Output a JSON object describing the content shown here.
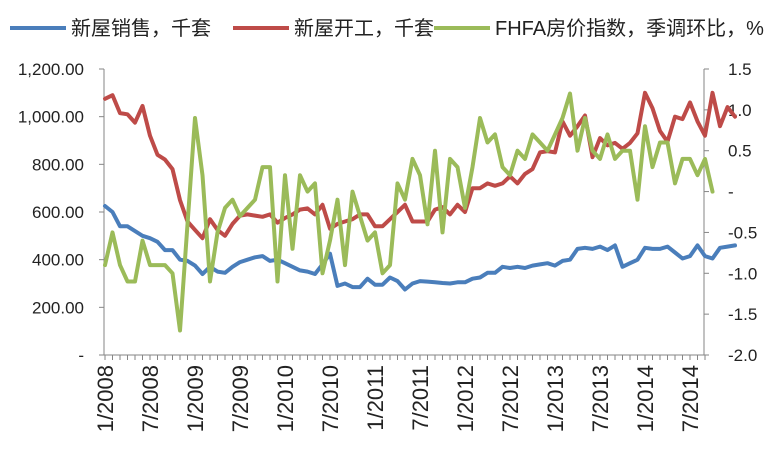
{
  "chart_data": {
    "type": "line",
    "title": "",
    "xlabel": "",
    "x_tick_labels": [
      "1/2008",
      "7/2008",
      "1/2009",
      "7/2009",
      "1/2010",
      "7/2010",
      "1/2011",
      "7/2011",
      "1/2012",
      "7/2012",
      "1/2013",
      "7/2013",
      "1/2014",
      "7/2014"
    ],
    "x_start": "1/2008",
    "x_end": "9/2014",
    "ylim_left": [
      0,
      1200
    ],
    "ylim_right": [
      -2.0,
      1.5
    ],
    "yticks_left": [
      "-",
      "200.00",
      "400.00",
      "600.00",
      "800.00",
      "1,000.00",
      "1,200.00"
    ],
    "yticks_right": [
      "-2.0",
      "-1.5",
      "-1.0",
      "-0.5",
      "-",
      "0.5",
      "1.0",
      "1.5"
    ],
    "grid": false,
    "legend_position": "top",
    "series": [
      {
        "name": "新屋销售，千套",
        "axis": "left",
        "color": "#4A7EBB",
        "values": [
          625,
          600,
          540,
          540,
          520,
          500,
          490,
          475,
          440,
          440,
          400,
          395,
          375,
          340,
          370,
          350,
          345,
          370,
          390,
          400,
          410,
          415,
          395,
          400,
          385,
          370,
          355,
          350,
          340,
          380,
          425,
          290,
          300,
          285,
          285,
          320,
          295,
          295,
          325,
          310,
          275,
          300,
          310,
          308,
          305,
          302,
          300,
          305,
          305,
          320,
          325,
          345,
          345,
          370,
          365,
          370,
          365,
          375,
          380,
          385,
          375,
          395,
          400,
          445,
          450,
          445,
          455,
          440,
          460,
          370,
          385,
          400,
          450,
          445,
          445,
          455,
          430,
          405,
          415,
          460,
          415,
          405,
          450,
          455,
          460
        ]
      },
      {
        "name": "新屋开工，千套",
        "axis": "left",
        "color": "#BE4B48",
        "values": [
          1075,
          1090,
          1015,
          1010,
          975,
          1045,
          920,
          840,
          820,
          780,
          650,
          560,
          525,
          490,
          570,
          525,
          500,
          550,
          585,
          590,
          585,
          580,
          590,
          555,
          575,
          590,
          610,
          615,
          590,
          630,
          530,
          550,
          560,
          570,
          590,
          590,
          540,
          540,
          570,
          600,
          630,
          560,
          560,
          560,
          610,
          620,
          590,
          630,
          600,
          700,
          700,
          720,
          710,
          720,
          750,
          720,
          760,
          780,
          850,
          855,
          850,
          980,
          920,
          960,
          1005,
          830,
          910,
          880,
          890,
          865,
          890,
          930,
          1100,
          1035,
          940,
          895,
          1000,
          990,
          1060,
          980,
          920,
          1100,
          960,
          1040,
          1000
        ]
      },
      {
        "name": "FHFA房价指数，季调环比，%",
        "axis": "right",
        "color": "#9BBB59",
        "values": [
          -0.9,
          -0.5,
          -0.9,
          -1.1,
          -1.1,
          -0.6,
          -0.9,
          -0.9,
          -0.9,
          -1.0,
          -1.7,
          -0.4,
          0.9,
          0.2,
          -1.1,
          -0.5,
          -0.2,
          -0.1,
          -0.3,
          -0.2,
          -0.1,
          0.3,
          0.3,
          -1.1,
          0.2,
          -0.7,
          0.2,
          0.0,
          0.1,
          -1.0,
          -0.6,
          -0.1,
          -0.9,
          0.0,
          -0.3,
          -0.6,
          -0.5,
          -1.0,
          -0.9,
          0.1,
          -0.1,
          0.4,
          0.2,
          -0.4,
          0.5,
          -0.5,
          0.4,
          0.3,
          -0.2,
          0.3,
          0.9,
          0.6,
          0.7,
          0.3,
          0.2,
          0.5,
          0.4,
          0.7,
          0.6,
          0.5,
          0.7,
          0.9,
          1.2,
          0.5,
          0.9,
          0.5,
          0.4,
          0.7,
          0.4,
          0.5,
          0.5,
          -0.1,
          0.8,
          0.3,
          0.6,
          0.6,
          0.1,
          0.4,
          0.4,
          0.2,
          0.4,
          0.0
        ]
      }
    ]
  }
}
